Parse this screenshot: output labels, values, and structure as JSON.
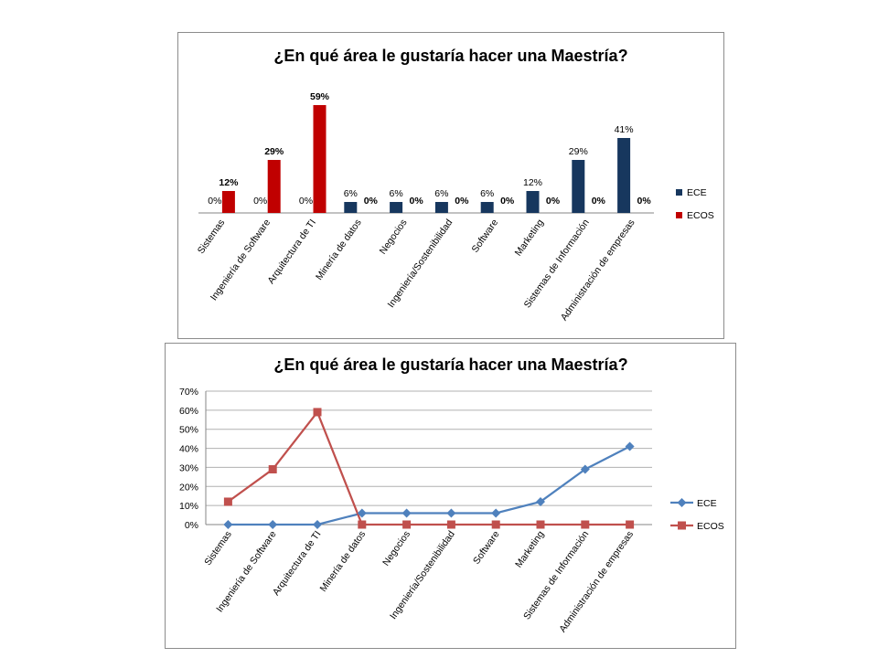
{
  "chart_data": [
    {
      "type": "bar",
      "title": "¿En qué área le gustaría hacer una Maestría?",
      "categories": [
        "Sistemas",
        "Ingeniería de Software",
        "Arquitectura de TI",
        "Minería de datos",
        "Negocios",
        "Ingeniería/Sostenibilidad",
        "Software",
        "Marketing",
        "Sistemas de Información",
        "Administración de empresas"
      ],
      "series": [
        {
          "name": "ECE",
          "color": "#17375e",
          "values": [
            0,
            0,
            0,
            6,
            6,
            6,
            6,
            12,
            29,
            41
          ],
          "labels": [
            "0%",
            "0%",
            "0%",
            "6%",
            "6%",
            "6%",
            "6%",
            "12%",
            "29%",
            "41%"
          ]
        },
        {
          "name": "ECOS",
          "color": "#c00000",
          "values": [
            12,
            29,
            59,
            0,
            0,
            0,
            0,
            0,
            0,
            0
          ],
          "labels": [
            "12%",
            "29%",
            "59%",
            "0%",
            "0%",
            "0%",
            "0%",
            "0%",
            "0%",
            "0%"
          ]
        }
      ],
      "legend": "right"
    },
    {
      "type": "line",
      "title": "¿En qué área le gustaría hacer una Maestría?",
      "categories": [
        "Sistemas",
        "Ingeniería de Software",
        "Arquitectura de TI",
        "Minería de datos",
        "Negocios",
        "Ingeniería/Sostenibilidad",
        "Software",
        "Marketing",
        "Sistemas de Información",
        "Administración de empresas"
      ],
      "series": [
        {
          "name": "ECE",
          "color": "#4f81bd",
          "marker": "diamond",
          "values": [
            0,
            0,
            0,
            6,
            6,
            6,
            6,
            12,
            29,
            41
          ]
        },
        {
          "name": "ECOS",
          "color": "#c0504d",
          "marker": "square",
          "values": [
            12,
            29,
            59,
            0,
            0,
            0,
            0,
            0,
            0,
            0
          ]
        }
      ],
      "ylim": [
        0,
        70
      ],
      "yticks": [
        "0%",
        "10%",
        "20%",
        "30%",
        "40%",
        "50%",
        "60%",
        "70%"
      ],
      "grid": true,
      "legend": "right"
    }
  ]
}
